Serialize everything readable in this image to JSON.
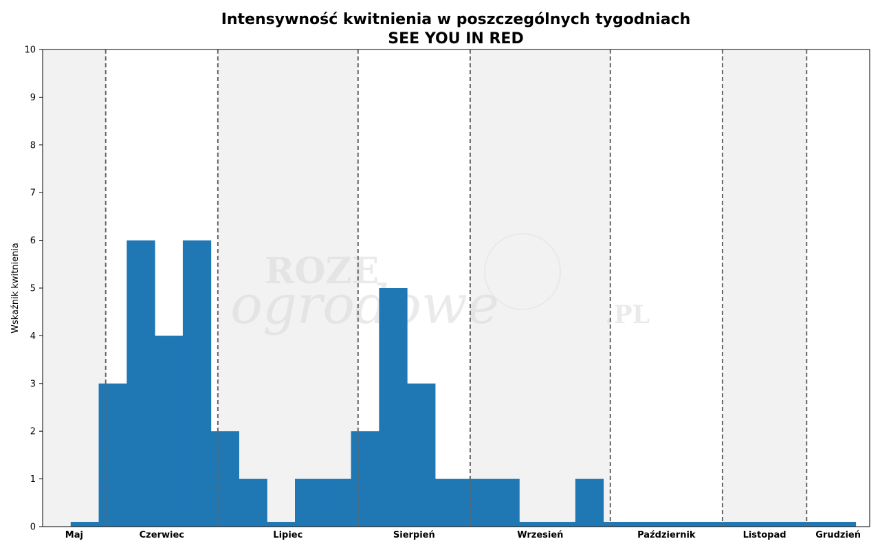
{
  "chart_data": {
    "type": "bar",
    "title": "Intensywność kwitnienia w poszczególnych tygodniach",
    "subtitle": "SEE YOU IN RED",
    "ylabel": "Wskaźnik kwitnienia",
    "xlabel": "",
    "ylim": [
      0,
      10
    ],
    "yticks": [
      "0",
      "1",
      "2",
      "3",
      "4",
      "5",
      "6",
      "7",
      "8",
      "9",
      "10"
    ],
    "grid": false,
    "weeks_total": 29.5,
    "values": [
      0.1,
      3,
      6,
      4,
      6,
      2,
      1,
      0.1,
      1,
      1,
      2,
      5,
      3,
      1,
      1,
      1,
      0.1,
      0.1,
      1,
      0.1,
      0.1,
      0.1,
      0.1,
      0.1,
      0.1,
      0.1,
      0.1,
      0.1
    ],
    "bar_color": "#1f77b4",
    "months": [
      {
        "name": "Maj",
        "start": 0,
        "end": 2.25,
        "shaded": true
      },
      {
        "name": "Czerwiec",
        "start": 2.25,
        "end": 6.25,
        "shaded": false
      },
      {
        "name": "Lipiec",
        "start": 6.25,
        "end": 11.25,
        "shaded": true
      },
      {
        "name": "Sierpień",
        "start": 11.25,
        "end": 15.25,
        "shaded": false
      },
      {
        "name": "Wrzesień",
        "start": 15.25,
        "end": 20.25,
        "shaded": true
      },
      {
        "name": "Październik",
        "start": 20.25,
        "end": 24.25,
        "shaded": false
      },
      {
        "name": "Listopad",
        "start": 24.25,
        "end": 27.25,
        "shaded": true
      },
      {
        "name": "Grudzień",
        "start": 27.25,
        "end": 29.5,
        "shaded": false
      }
    ],
    "shade_color": "#f2f2f2",
    "divider_color": "#666666"
  },
  "watermark": {
    "line1": "ROZE",
    "line2": "ogrodowe",
    "suffix": ".PL"
  }
}
